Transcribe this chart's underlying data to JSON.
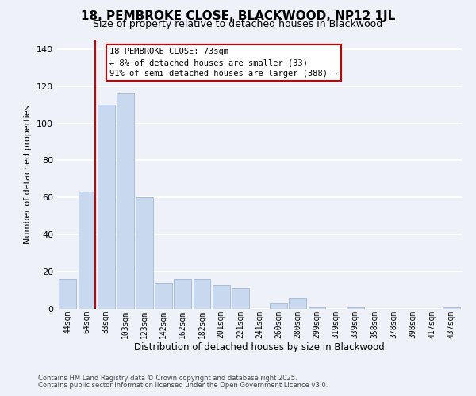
{
  "title": "18, PEMBROKE CLOSE, BLACKWOOD, NP12 1JL",
  "subtitle": "Size of property relative to detached houses in Blackwood",
  "xlabel": "Distribution of detached houses by size in Blackwood",
  "ylabel": "Number of detached properties",
  "bar_labels": [
    "44sqm",
    "64sqm",
    "83sqm",
    "103sqm",
    "123sqm",
    "142sqm",
    "162sqm",
    "182sqm",
    "201sqm",
    "221sqm",
    "241sqm",
    "260sqm",
    "280sqm",
    "299sqm",
    "319sqm",
    "339sqm",
    "358sqm",
    "378sqm",
    "398sqm",
    "417sqm",
    "437sqm"
  ],
  "bar_values": [
    16,
    63,
    110,
    116,
    60,
    14,
    16,
    16,
    13,
    11,
    0,
    3,
    6,
    1,
    0,
    1,
    0,
    0,
    0,
    0,
    1
  ],
  "bar_color": "#c8d8ee",
  "bar_edge_color": "#aabbd8",
  "property_line_color": "#cc0000",
  "ylim": [
    0,
    145
  ],
  "yticks": [
    0,
    20,
    40,
    60,
    80,
    100,
    120,
    140
  ],
  "annotation_title": "18 PEMBROKE CLOSE: 73sqm",
  "annotation_line1": "← 8% of detached houses are smaller (33)",
  "annotation_line2": "91% of semi-detached houses are larger (388) →",
  "annotation_box_color": "#ffffff",
  "annotation_box_edge_color": "#cc0000",
  "footer_line1": "Contains HM Land Registry data © Crown copyright and database right 2025.",
  "footer_line2": "Contains public sector information licensed under the Open Government Licence v3.0.",
  "background_color": "#eef2f8"
}
